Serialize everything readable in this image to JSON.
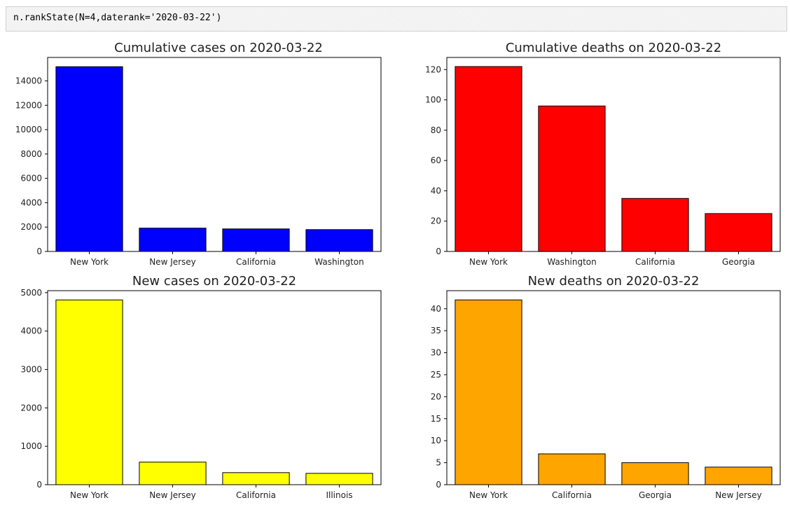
{
  "code_cell": {
    "code": "n.rankState(N=4,daterank='2020-03-22')"
  },
  "chart_data": [
    {
      "type": "bar",
      "title": "Cumulative cases on 2020-03-22",
      "categories": [
        "New York",
        "New Jersey",
        "California",
        "Washington"
      ],
      "values": [
        15168,
        1914,
        1851,
        1793
      ],
      "ylim": [
        0,
        15926
      ],
      "yticks": [
        0,
        2000,
        4000,
        6000,
        8000,
        10000,
        12000,
        14000
      ],
      "color": "#0000ff",
      "xlabel": "",
      "ylabel": ""
    },
    {
      "type": "bar",
      "title": "Cumulative deaths on 2020-03-22",
      "categories": [
        "New York",
        "Washington",
        "California",
        "Georgia"
      ],
      "values": [
        122,
        96,
        35,
        25
      ],
      "ylim": [
        0,
        128
      ],
      "yticks": [
        0,
        20,
        40,
        60,
        80,
        100,
        120
      ],
      "color": "#ff0000",
      "xlabel": "",
      "ylabel": ""
    },
    {
      "type": "bar",
      "title": "New cases on 2020-03-22",
      "categories": [
        "New York",
        "New Jersey",
        "California",
        "Illinois"
      ],
      "values": [
        4812,
        587,
        313,
        296
      ],
      "ylim": [
        0,
        5052
      ],
      "yticks": [
        0,
        1000,
        2000,
        3000,
        4000,
        5000
      ],
      "color": "#ffff00",
      "xlabel": "",
      "ylabel": ""
    },
    {
      "type": "bar",
      "title": "New deaths on 2020-03-22",
      "categories": [
        "New York",
        "California",
        "Georgia",
        "New Jersey"
      ],
      "values": [
        42,
        7,
        5,
        4
      ],
      "ylim": [
        0,
        44.1
      ],
      "yticks": [
        0,
        5,
        10,
        15,
        20,
        25,
        30,
        35,
        40
      ],
      "color": "#ffa500",
      "xlabel": "",
      "ylabel": ""
    }
  ]
}
